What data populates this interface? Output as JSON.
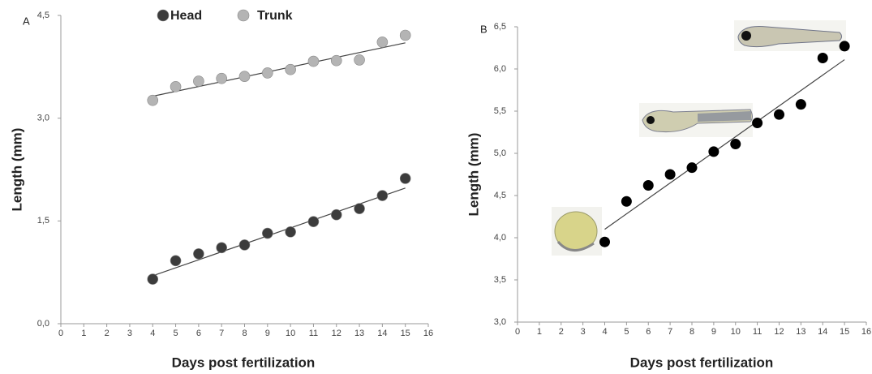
{
  "chart_data": [
    {
      "type": "scatter",
      "panel_label": "A",
      "y_label": "Length (mm)",
      "x_label": "Days post fertilization",
      "xlim": [
        0,
        16
      ],
      "xticks": [
        0,
        1,
        2,
        3,
        4,
        5,
        6,
        7,
        8,
        9,
        10,
        11,
        12,
        13,
        14,
        15,
        16
      ],
      "ylim": [
        0,
        4.5
      ],
      "yticks": [
        {
          "value": 0,
          "label": "0,0"
        },
        {
          "value": 1.5,
          "label": "1,5"
        },
        {
          "value": 3,
          "label": "3,0"
        },
        {
          "value": 4.5,
          "label": "4,5"
        }
      ],
      "x": [
        4,
        5,
        6,
        7,
        8,
        9,
        10,
        11,
        12,
        13,
        14,
        15
      ],
      "series": [
        {
          "name": "Head",
          "color": "#3c3c3c",
          "values": [
            0.65,
            0.92,
            1.02,
            1.11,
            1.15,
            1.32,
            1.34,
            1.49,
            1.59,
            1.68,
            1.87,
            2.12
          ],
          "trend_x": [
            4,
            15
          ],
          "trend_values": [
            0.7,
            1.98
          ]
        },
        {
          "name": "Trunk",
          "color": "#b4b4b4",
          "values": [
            3.26,
            3.46,
            3.54,
            3.58,
            3.61,
            3.66,
            3.71,
            3.83,
            3.84,
            3.85,
            4.11,
            4.21
          ],
          "trend_x": [
            4,
            15
          ],
          "trend_values": [
            3.32,
            4.1
          ]
        }
      ],
      "legend": "top"
    },
    {
      "type": "scatter",
      "panel_label": "B",
      "y_label": "Length (mm)",
      "x_label": "Days post fertilization",
      "xlim": [
        0,
        16
      ],
      "xticks": [
        0,
        1,
        2,
        3,
        4,
        5,
        6,
        7,
        8,
        9,
        10,
        11,
        12,
        13,
        14,
        15,
        16
      ],
      "ylim": [
        3,
        6.5
      ],
      "yticks": [
        {
          "value": 3,
          "label": "3,0"
        },
        {
          "value": 3.5,
          "label": "3,5"
        },
        {
          "value": 4,
          "label": "4,0"
        },
        {
          "value": 4.5,
          "label": "4,5"
        },
        {
          "value": 5,
          "label": "5,0"
        },
        {
          "value": 5.5,
          "label": "5,5"
        },
        {
          "value": 6,
          "label": "6,0"
        },
        {
          "value": 6.5,
          "label": "6,5"
        }
      ],
      "x": [
        4,
        5,
        6,
        7,
        8,
        9,
        10,
        11,
        12,
        13,
        14,
        15
      ],
      "series": [
        {
          "color": "#000000",
          "values": [
            3.95,
            4.43,
            4.62,
            4.75,
            4.83,
            5.02,
            5.11,
            5.36,
            5.46,
            5.58,
            6.13,
            6.27
          ],
          "trend_x": [
            4,
            15
          ],
          "trend_values": [
            4.1,
            6.11
          ]
        }
      ]
    }
  ]
}
